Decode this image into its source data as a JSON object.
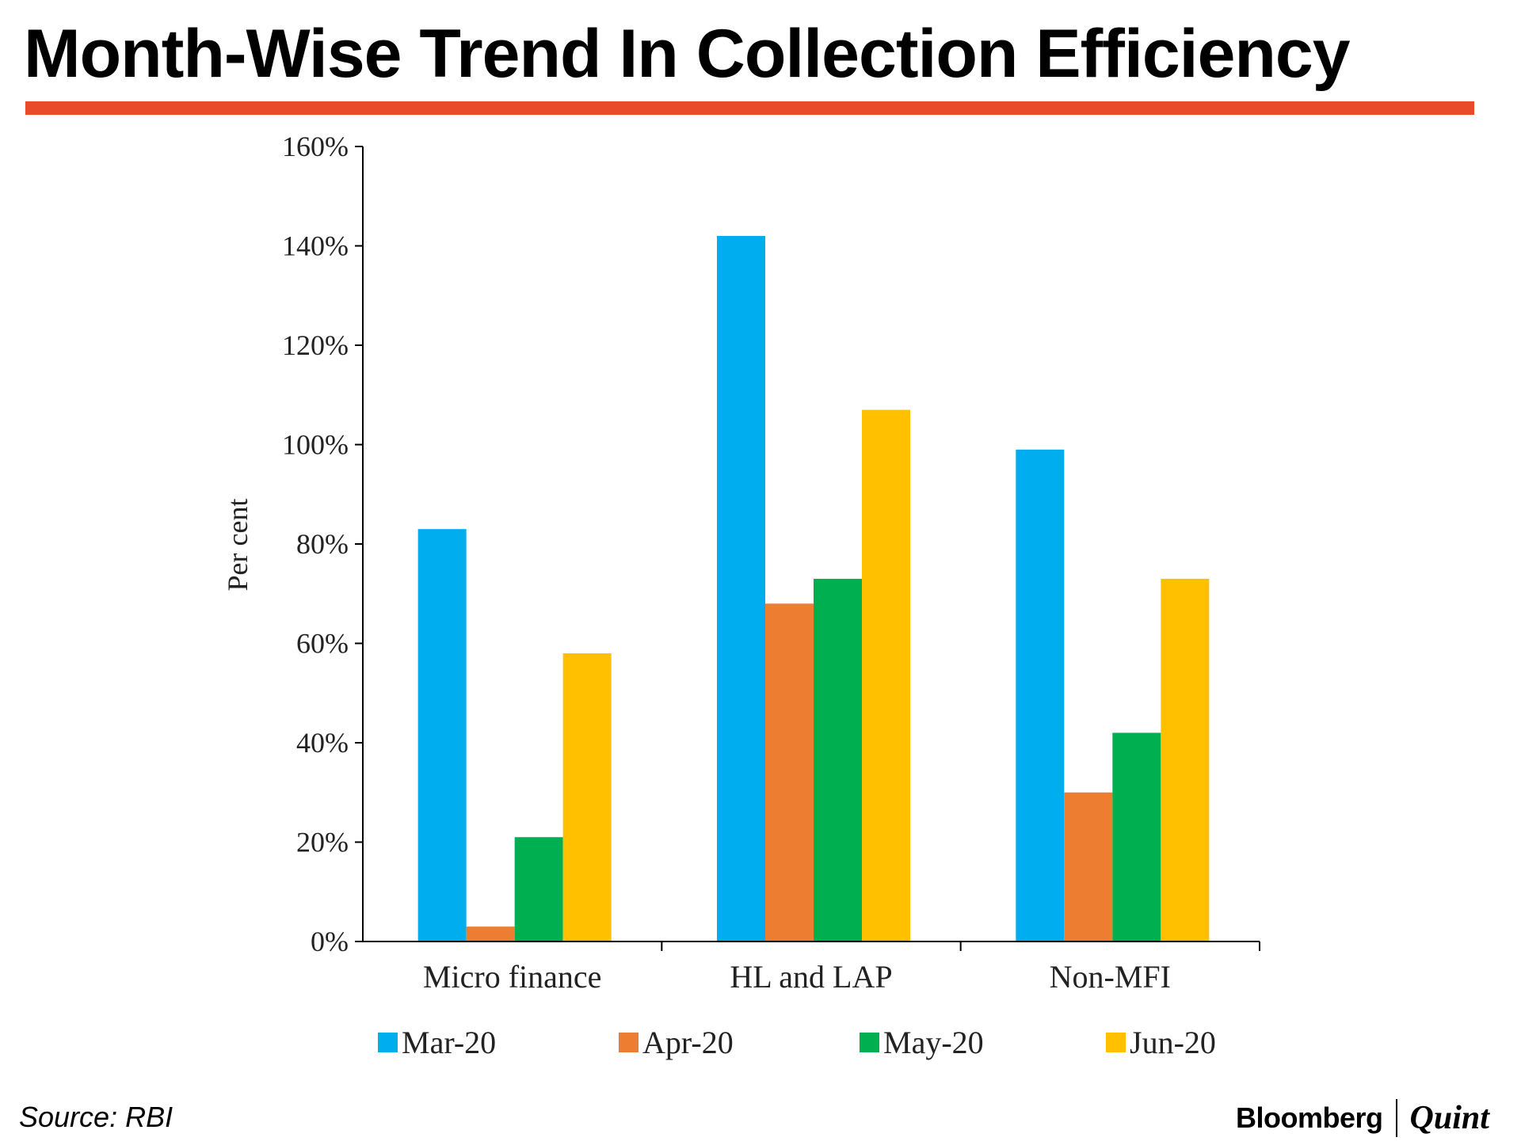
{
  "header": {
    "title": "Month-Wise Trend In Collection Efficiency",
    "rule_color": "#E94B2A"
  },
  "footer": {
    "source": "Source: RBI",
    "logo_primary": "Bloomberg",
    "logo_secondary": "Quint"
  },
  "chart_data": {
    "type": "bar",
    "title": "Month-Wise Trend In Collection Efficiency",
    "xlabel": "",
    "ylabel": "Per cent",
    "ylim": [
      0,
      160
    ],
    "yticks": [
      0,
      20,
      40,
      60,
      80,
      100,
      120,
      140,
      160
    ],
    "ytick_labels": [
      "0%",
      "20%",
      "40%",
      "60%",
      "80%",
      "100%",
      "120%",
      "140%",
      "160%"
    ],
    "categories": [
      "Micro finance",
      "HL and LAP",
      "Non-MFI"
    ],
    "series": [
      {
        "name": "Mar-20",
        "color": "#00AEEF",
        "values": [
          83,
          142,
          99
        ]
      },
      {
        "name": "Apr-20",
        "color": "#ED7D31",
        "values": [
          3,
          68,
          30
        ]
      },
      {
        "name": "May-20",
        "color": "#00B050",
        "values": [
          21,
          73,
          42
        ]
      },
      {
        "name": "Jun-20",
        "color": "#FFC000",
        "values": [
          58,
          107,
          73
        ]
      }
    ],
    "legend_position": "bottom",
    "grid": false
  }
}
